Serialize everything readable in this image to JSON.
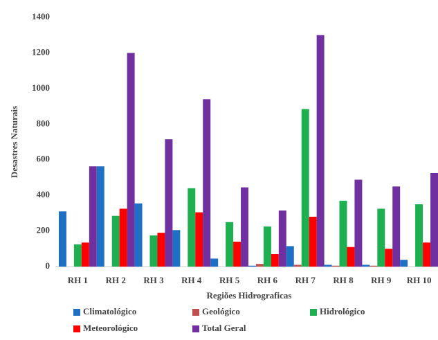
{
  "chart_data": {
    "type": "bar",
    "ylabel": "Desastres Naturais",
    "xlabel": "Regiões Hidrograficas",
    "categories": [
      "RH 1",
      "RH 2",
      "RH 3",
      "RH 4",
      "RH 5",
      "RH 6",
      "RH 7",
      "RH 8",
      "RH 9",
      "RH 10"
    ],
    "series": [
      {
        "name": "Climatológico",
        "color": "#1f6fc5",
        "values": [
          310,
          563,
          355,
          205,
          45,
          5,
          115,
          10,
          10,
          38
        ]
      },
      {
        "name": "Geológico",
        "color": "#c0504d",
        "values": [
          0,
          0,
          0,
          0,
          0,
          15,
          10,
          5,
          5,
          0
        ]
      },
      {
        "name": "Hidrológico",
        "color": "#1eb050",
        "values": [
          125,
          285,
          175,
          440,
          250,
          225,
          885,
          370,
          325,
          350
        ]
      },
      {
        "name": "Meteorológico",
        "color": "#ff0000",
        "values": [
          135,
          325,
          190,
          305,
          140,
          70,
          280,
          110,
          100,
          135
        ]
      },
      {
        "name": "Total Geral",
        "color": "#7030a0",
        "values": [
          563,
          1200,
          715,
          940,
          445,
          315,
          1300,
          488,
          450,
          525
        ]
      }
    ],
    "ylim": [
      0,
      1400
    ],
    "yticks": [
      0,
      200,
      400,
      600,
      800,
      1000,
      1200,
      1400
    ],
    "grid": false,
    "legend": "bottom"
  }
}
